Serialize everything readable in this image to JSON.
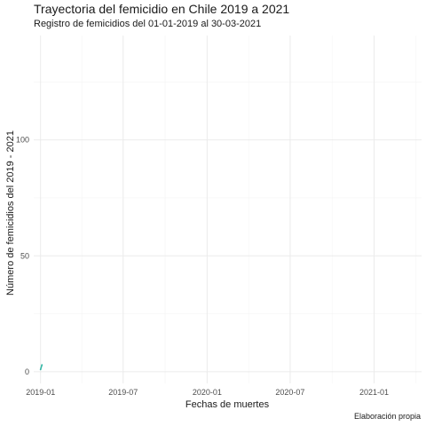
{
  "chart_data": {
    "type": "line",
    "title": "Trayectoria del femicidio en Chile 2019 a 2021",
    "subtitle": "Registro de femicidios del 01-01-2019 al 30-03-2021",
    "xlabel": "Fechas de muertes",
    "ylabel": "Número de femicidios del 2019 - 2021",
    "caption": "Elaboración propia",
    "x_ticks": [
      "2019-01",
      "2019-07",
      "2020-01",
      "2020-07",
      "2021-01"
    ],
    "y_ticks": [
      "0",
      "50",
      "100"
    ],
    "xlim": [
      "2018-12-17",
      "2021-04-15"
    ],
    "ylim": [
      -5,
      145
    ],
    "grid": true,
    "series": [
      {
        "color": "#35b7a6",
        "points": [
          {
            "x": "2019-01-01",
            "y": 1
          },
          {
            "x": "2019-01-04",
            "y": 3
          }
        ]
      }
    ]
  }
}
